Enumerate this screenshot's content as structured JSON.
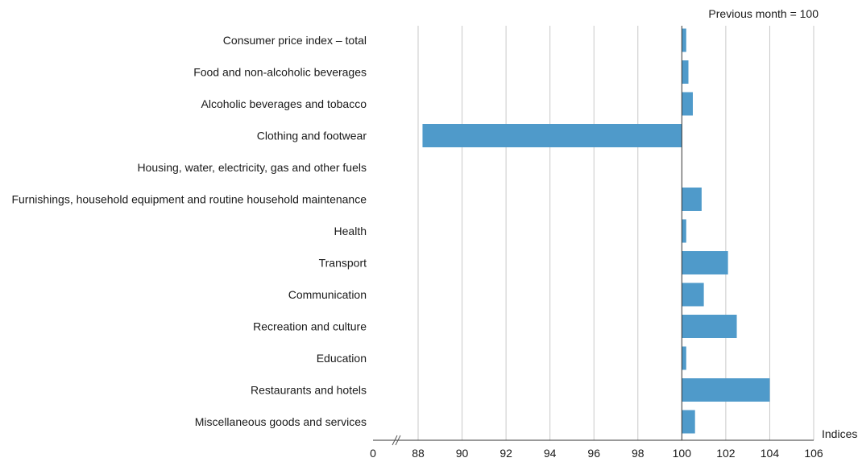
{
  "chart_data": {
    "type": "bar",
    "orientation": "horizontal",
    "baseline": 100,
    "unit_label": "Previous month = 100",
    "xlabel": "Indices",
    "axis_break": true,
    "x_ticks": [
      "0",
      "88",
      "90",
      "92",
      "94",
      "96",
      "98",
      "100",
      "102",
      "104",
      "106"
    ],
    "xlim": [
      88,
      106
    ],
    "grid": true,
    "bar_color": "#4f9aca",
    "categories": [
      "Consumer price index – total",
      "Food and non-alcoholic beverages",
      "Alcoholic beverages and tobacco",
      "Clothing and footwear",
      "Housing, water, electricity, gas and other fuels",
      "Furnishings, household equipment and routine household maintenance",
      "Health",
      "Transport",
      "Communication",
      "Recreation and culture",
      "Education",
      "Restaurants and hotels",
      "Miscellaneous goods and services"
    ],
    "values": [
      100.2,
      100.3,
      100.5,
      88.2,
      100.0,
      100.9,
      100.2,
      102.1,
      101.0,
      102.5,
      100.2,
      104.0,
      100.6
    ]
  }
}
